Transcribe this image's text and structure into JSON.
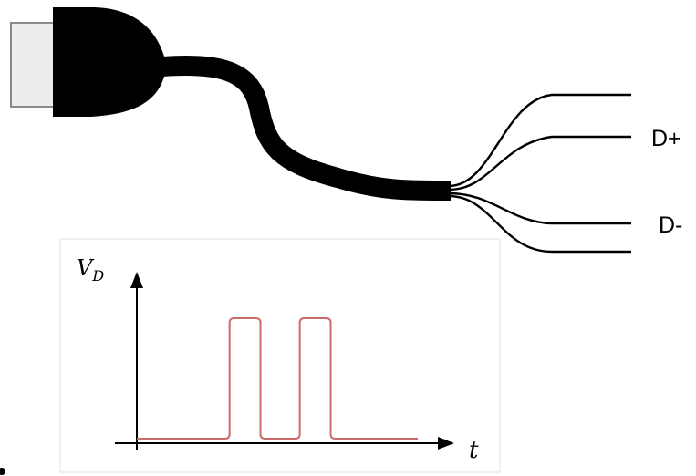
{
  "wires": {
    "dplus_label": "D+",
    "dminus_label": "D-"
  },
  "plot": {
    "y_axis_label": "V",
    "y_axis_subscript": "D",
    "x_axis_label": "t",
    "pulses": [
      {
        "start": 0.33,
        "end": 0.44
      },
      {
        "start": 0.58,
        "end": 0.69
      }
    ],
    "colors": {
      "signal": "#c96b6b",
      "axis": "#000000",
      "frame": "#e0e0e0"
    }
  },
  "cable": {
    "colors": {
      "jacket": "#000000",
      "plug_shell": "#ececec",
      "plug_outline": "#8a8a8a"
    }
  }
}
